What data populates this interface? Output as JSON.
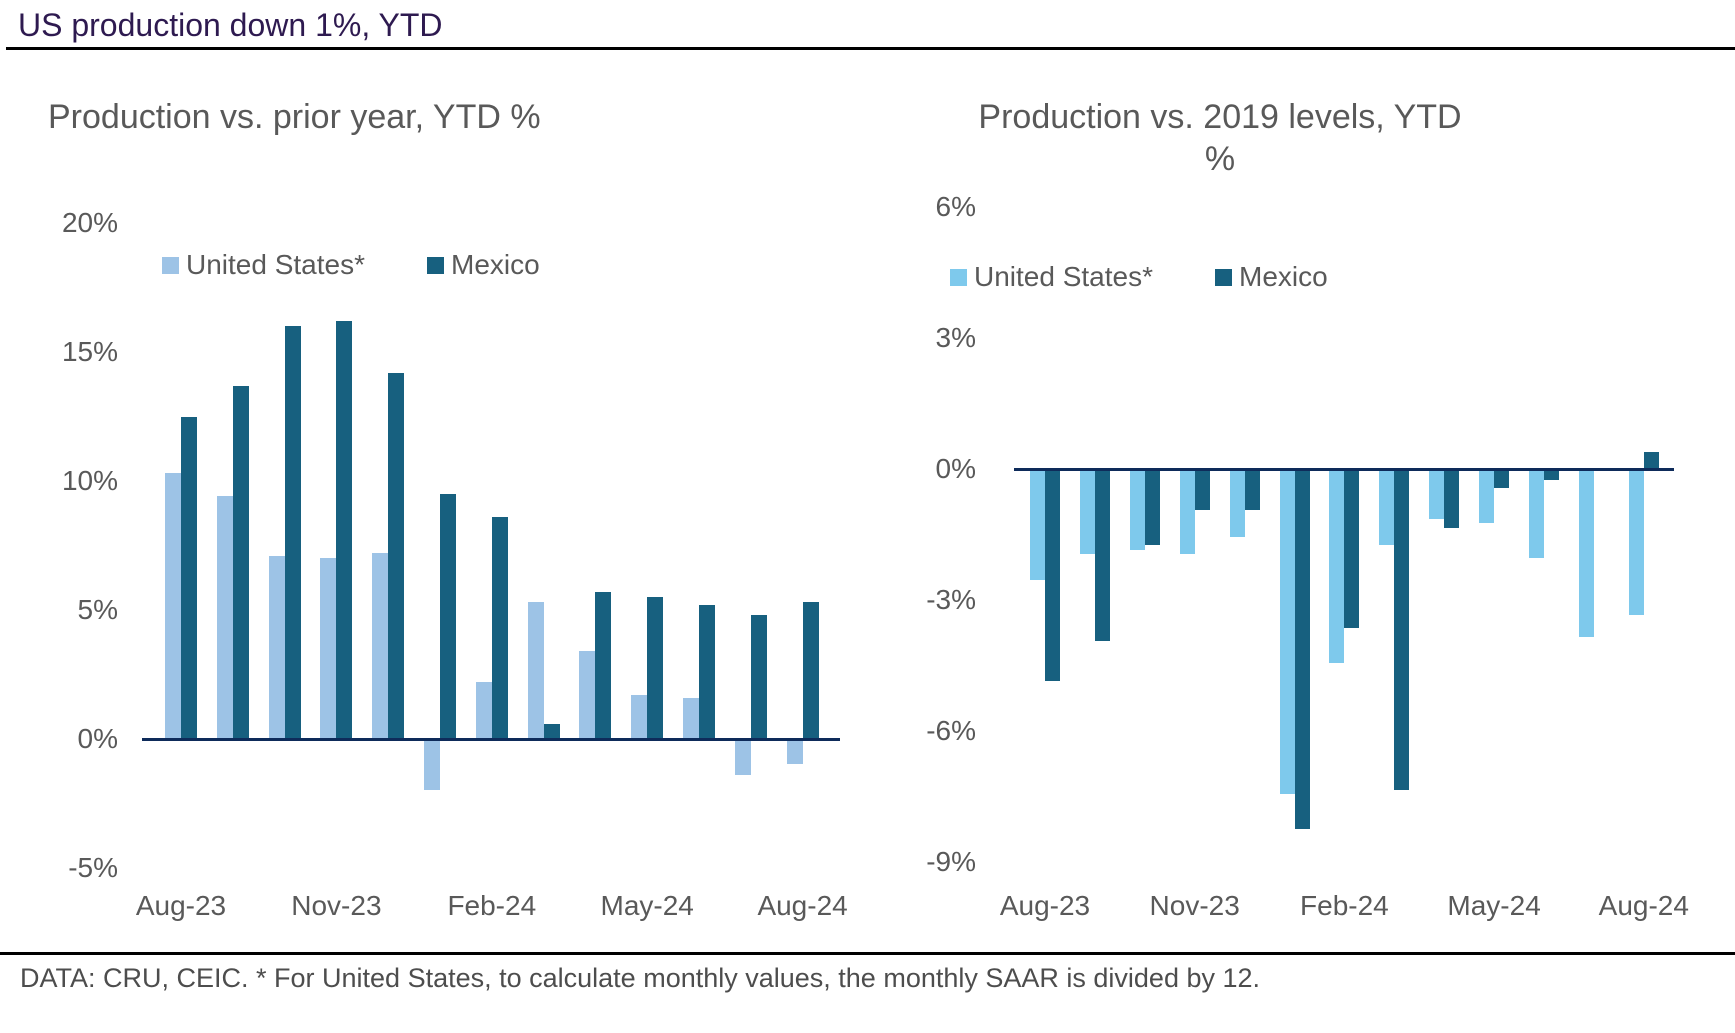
{
  "header": {
    "title": "US production down 1%, YTD"
  },
  "footer": {
    "text": "DATA: CRU, CEIC. * For United States, to calculate monthly values, the monthly SAAR is divided by 12."
  },
  "colors": {
    "main_title": "#2E1A50",
    "chart_title": "#595959",
    "tick_label": "#595959",
    "legend_label": "#595959",
    "footer_text": "#4D4D4D",
    "axis_line": "#0E2B5A",
    "rule_line": "#000000",
    "us_left": "#9DC3E6",
    "us_right": "#7EC9EC",
    "mexico": "#17607F"
  },
  "chart_data": [
    {
      "type": "bar",
      "title": "Production vs. prior year, YTD %",
      "title_line1": "Production vs. prior year, YTD %",
      "title_line2": "",
      "grid": false,
      "legend_position": "top",
      "ylim": [
        -5,
        20
      ],
      "categories": [
        "Aug-23",
        "Sep-23",
        "Oct-23",
        "Nov-23",
        "Dec-23",
        "Jan-24",
        "Feb-24",
        "Mar-24",
        "Apr-24",
        "May-24",
        "Jun-24",
        "Jul-24",
        "Aug-24"
      ],
      "series": [
        {
          "name": "United States*",
          "color_key": "us_left",
          "values": [
            10.3,
            9.4,
            7.1,
            7.0,
            7.2,
            -1.9,
            2.2,
            5.3,
            3.4,
            1.7,
            1.6,
            -1.3,
            -0.9
          ]
        },
        {
          "name": "Mexico",
          "color_key": "mexico",
          "values": [
            12.5,
            13.7,
            16.0,
            16.2,
            14.2,
            9.5,
            8.6,
            0.6,
            5.7,
            5.5,
            5.2,
            4.8,
            5.3
          ]
        }
      ],
      "yticks": [
        {
          "value": 20,
          "label": "20%"
        },
        {
          "value": 15,
          "label": "15%"
        },
        {
          "value": 10,
          "label": "10%"
        },
        {
          "value": 5,
          "label": "5%"
        },
        {
          "value": 0,
          "label": "0%"
        },
        {
          "value": -5,
          "label": "-5%"
        }
      ],
      "xticks": [
        {
          "index": 0,
          "label": "Aug-23"
        },
        {
          "index": 3,
          "label": "Nov-23"
        },
        {
          "index": 6,
          "label": "Feb-24"
        },
        {
          "index": 9,
          "label": "May-24"
        },
        {
          "index": 12,
          "label": "Aug-24"
        }
      ]
    },
    {
      "type": "bar",
      "title": "Production vs. 2019 levels, YTD %",
      "title_line1": "Production vs. 2019 levels, YTD",
      "title_line2": "%",
      "grid": false,
      "legend_position": "top",
      "ylim": [
        -9,
        6
      ],
      "categories": [
        "Aug-23",
        "Sep-23",
        "Oct-23",
        "Nov-23",
        "Dec-23",
        "Jan-24",
        "Feb-24",
        "Mar-24",
        "Apr-24",
        "May-24",
        "Jun-24",
        "Jul-24",
        "Aug-24"
      ],
      "series": [
        {
          "name": "United States*",
          "color_key": "us_right",
          "values": [
            -2.5,
            -1.9,
            -1.8,
            -1.9,
            -1.5,
            -7.4,
            -4.4,
            -1.7,
            -1.1,
            -1.2,
            -2.0,
            -3.8,
            -3.3
          ]
        },
        {
          "name": "Mexico",
          "color_key": "mexico",
          "values": [
            -4.8,
            -3.9,
            -1.7,
            -0.9,
            -0.9,
            -8.2,
            -3.6,
            -7.3,
            -1.3,
            -0.4,
            -0.2,
            0.0,
            0.4
          ]
        }
      ],
      "yticks": [
        {
          "value": 6,
          "label": "6%"
        },
        {
          "value": 3,
          "label": "3%"
        },
        {
          "value": 0,
          "label": "0%"
        },
        {
          "value": -3,
          "label": "-3%"
        },
        {
          "value": -6,
          "label": "-6%"
        },
        {
          "value": -9,
          "label": "-9%"
        }
      ],
      "xticks": [
        {
          "index": 0,
          "label": "Aug-23"
        },
        {
          "index": 3,
          "label": "Nov-23"
        },
        {
          "index": 6,
          "label": "Feb-24"
        },
        {
          "index": 9,
          "label": "May-24"
        },
        {
          "index": 12,
          "label": "Aug-24"
        }
      ]
    }
  ]
}
